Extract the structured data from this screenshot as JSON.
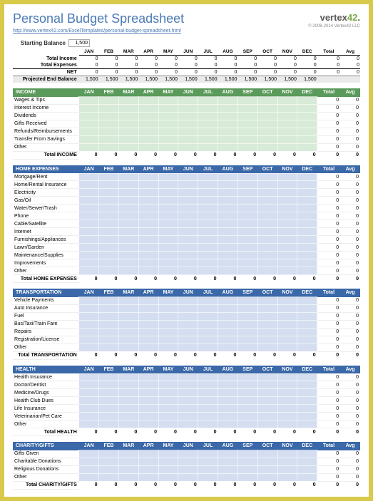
{
  "title": "Personal Budget Spreadsheet",
  "url": "http://www.vertex42.com/ExcelTemplates/personal-budget-spreadsheet.html",
  "logo": {
    "brand": "vertex",
    "num": "42",
    "copyright": "© 2008-2014 Vertex42 LLC"
  },
  "starting_balance": {
    "label": "Starting Balance",
    "value": "1,500"
  },
  "months": [
    "JAN",
    "FEB",
    "MAR",
    "APR",
    "MAY",
    "JUN",
    "JUL",
    "AUG",
    "SEP",
    "OCT",
    "NOV",
    "DEC"
  ],
  "totals_labels": {
    "total": "Total",
    "avg": "Avg"
  },
  "summary": {
    "rows": [
      {
        "label": "Total Income",
        "vals": [
          "0",
          "0",
          "0",
          "0",
          "0",
          "0",
          "0",
          "0",
          "0",
          "0",
          "0",
          "0"
        ],
        "total": "0",
        "avg": "0"
      },
      {
        "label": "Total Expenses",
        "vals": [
          "0",
          "0",
          "0",
          "0",
          "0",
          "0",
          "0",
          "0",
          "0",
          "0",
          "0",
          "0"
        ],
        "total": "0",
        "avg": "0"
      }
    ],
    "net": {
      "label": "NET",
      "vals": [
        "0",
        "0",
        "0",
        "0",
        "0",
        "0",
        "0",
        "0",
        "0",
        "0",
        "0",
        "0"
      ],
      "total": "0",
      "avg": "0"
    },
    "projected": {
      "label": "Projected End Balance",
      "vals": [
        "1,500",
        "1,500",
        "1,500",
        "1,500",
        "1,500",
        "1,500",
        "1,500",
        "1,500",
        "1,500",
        "1,500",
        "1,500",
        "1,500"
      ],
      "total": "",
      "avg": ""
    }
  },
  "sections": [
    {
      "title": "INCOME",
      "style": "income",
      "rows": [
        "Wages & Tips",
        "Interest Income",
        "Dividends",
        "Gifts Received",
        "Refunds/Reimbursements",
        "Transfer From Savings",
        "Other"
      ],
      "total_label": "Total INCOME"
    },
    {
      "title": "HOME EXPENSES",
      "style": "blue",
      "rows": [
        "Mortgage/Rent",
        "Home/Rental Insurance",
        "Electricity",
        "Gas/Oil",
        "Water/Sewer/Trash",
        "Phone",
        "Cable/Satellite",
        "Internet",
        "Furnishings/Appliances",
        "Lawn/Garden",
        "Maintenance/Supplies",
        "Improvements",
        "Other"
      ],
      "total_label": "Total HOME EXPENSES"
    },
    {
      "title": "TRANSPORTATION",
      "style": "blue",
      "rows": [
        "Vehicle Payments",
        "Auto Insurance",
        "Fuel",
        "Bus/Taxi/Train Fare",
        "Repairs",
        "Registration/License",
        "Other"
      ],
      "total_label": "Total TRANSPORTATION"
    },
    {
      "title": "HEALTH",
      "style": "blue",
      "rows": [
        "Health Insurance",
        "Doctor/Dentist",
        "Medicine/Drugs",
        "Health Club Dues",
        "Life Insurance",
        "Veterinarian/Pet Care",
        "Other"
      ],
      "total_label": "Total HEALTH"
    },
    {
      "title": "CHARITY/GIFTS",
      "style": "blue",
      "rows": [
        "Gifts Given",
        "Charitable Donations",
        "Religious Donations",
        "Other"
      ],
      "total_label": "Total CHARITY/GIFTS"
    }
  ],
  "colors": {
    "page_border": "#d9c94a",
    "title_color": "#4a7ab5",
    "income_header": "#5a9a5a",
    "income_cell": "#d8ead8",
    "blue_header": "#3a68a8",
    "blue_cell": "#d4def0"
  }
}
